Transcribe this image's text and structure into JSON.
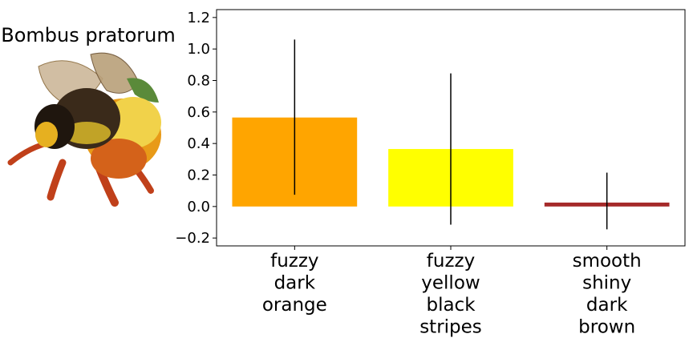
{
  "image_title": "Bombus pratorum",
  "chart_data": {
    "type": "bar",
    "categories": [
      [
        "fuzzy",
        "dark",
        "orange"
      ],
      [
        "fuzzy",
        "yellow",
        "black",
        "stripes"
      ],
      [
        "smooth",
        "shiny",
        "dark",
        "brown"
      ]
    ],
    "values": [
      0.565,
      0.365,
      0.025
    ],
    "error_low": [
      0.075,
      -0.115,
      -0.145
    ],
    "error_high": [
      1.06,
      0.845,
      0.215
    ],
    "colors": [
      "#FFA500",
      "#FFFF00",
      "#A52A2A"
    ],
    "ylim": [
      -0.25,
      1.25
    ],
    "yticks": [
      -0.2,
      0.0,
      0.2,
      0.4,
      0.6,
      0.8,
      1.0,
      1.2
    ],
    "ytick_labels": [
      "−0.2",
      "0.0",
      "0.2",
      "0.4",
      "0.6",
      "0.8",
      "1.0",
      "1.2"
    ],
    "grid": false
  }
}
